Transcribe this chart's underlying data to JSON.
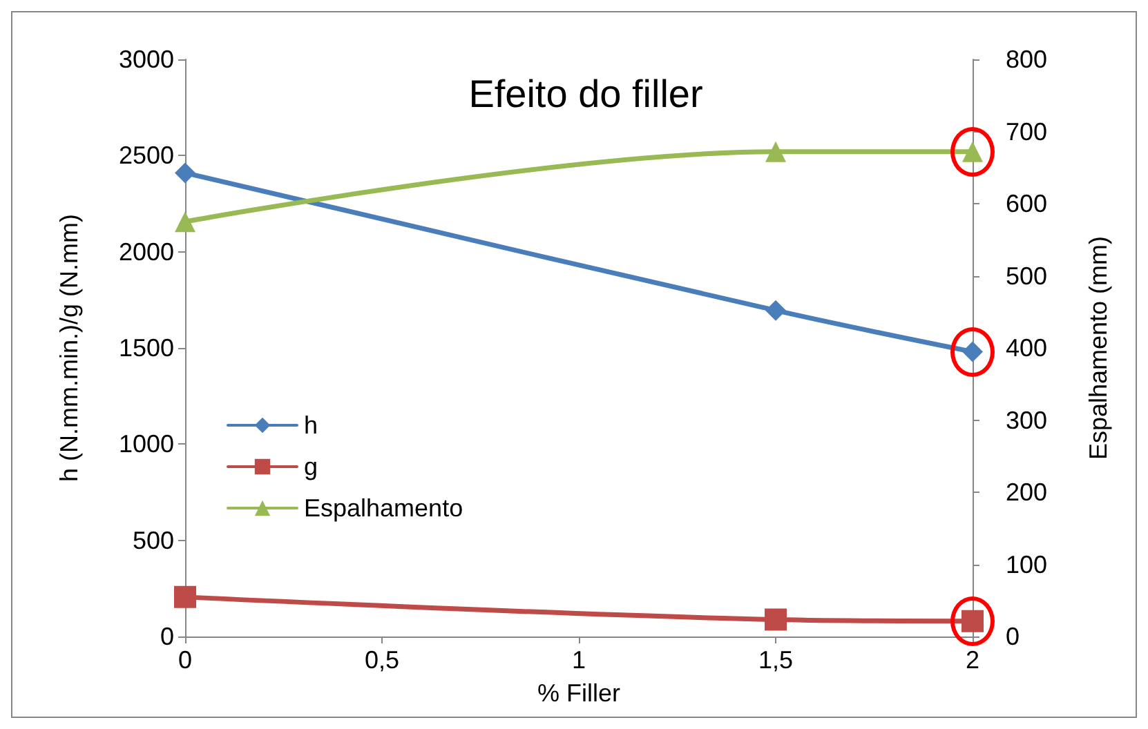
{
  "chart_data": {
    "type": "line",
    "title": "Efeito do filler",
    "xlabel": "% Filler",
    "ylabel": "h (N.mm.min.)/g (N.mm)",
    "y2label": "Espalhamento (mm)",
    "x": [
      0,
      1.5,
      2
    ],
    "series": [
      {
        "name": "h",
        "color": "#4a7ebb",
        "marker": "diamond",
        "values": [
          2410,
          1695,
          1480
        ]
      },
      {
        "name": "g",
        "color": "#be4b48",
        "marker": "square",
        "values": [
          205,
          88,
          80
        ]
      },
      {
        "name": "Espalhamento",
        "color": "#98b954",
        "marker": "triangle",
        "axis": "y2",
        "values": [
          575,
          672,
          672
        ]
      }
    ],
    "xlim": [
      0,
      2
    ],
    "xticks": [
      0,
      {
        "value": 0.5,
        "label": "0,5"
      },
      1,
      {
        "value": 1.5,
        "label": "1,5"
      },
      2
    ],
    "ylim": [
      0,
      3000
    ],
    "yticks": [
      0,
      500,
      1000,
      1500,
      2000,
      2500,
      3000
    ],
    "y2lim": [
      0,
      800
    ],
    "y2ticks": [
      0,
      100,
      200,
      300,
      400,
      500,
      600,
      700,
      800
    ],
    "grid": false,
    "legend": "left",
    "line_style": "solid"
  }
}
